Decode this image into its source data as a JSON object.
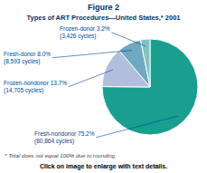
{
  "chart_data": {
    "type": "pie",
    "title": "Figure 2",
    "subtitle": "Types of ART Procedures—United States,* 2001",
    "categories": [
      "Fresh-nondonor 75.2%\n(80,864 cycles)",
      "Frozen-nondonor 13.7%\n(14,705 cycles)",
      "Fresh-donor 8.0%\n(8,593 cycles)",
      "Frozen-donor 3.2%\n(3,426 cycles)"
    ],
    "values": [
      75.2,
      13.7,
      8.0,
      3.2
    ],
    "colors": [
      "#1a9e8f",
      "#b3bedd",
      "#6fa8c0",
      "#7fc4c0"
    ],
    "annotations": [
      "* Total does not equal 100% due to rounding.",
      "Click on image to enlarge with text details."
    ]
  }
}
